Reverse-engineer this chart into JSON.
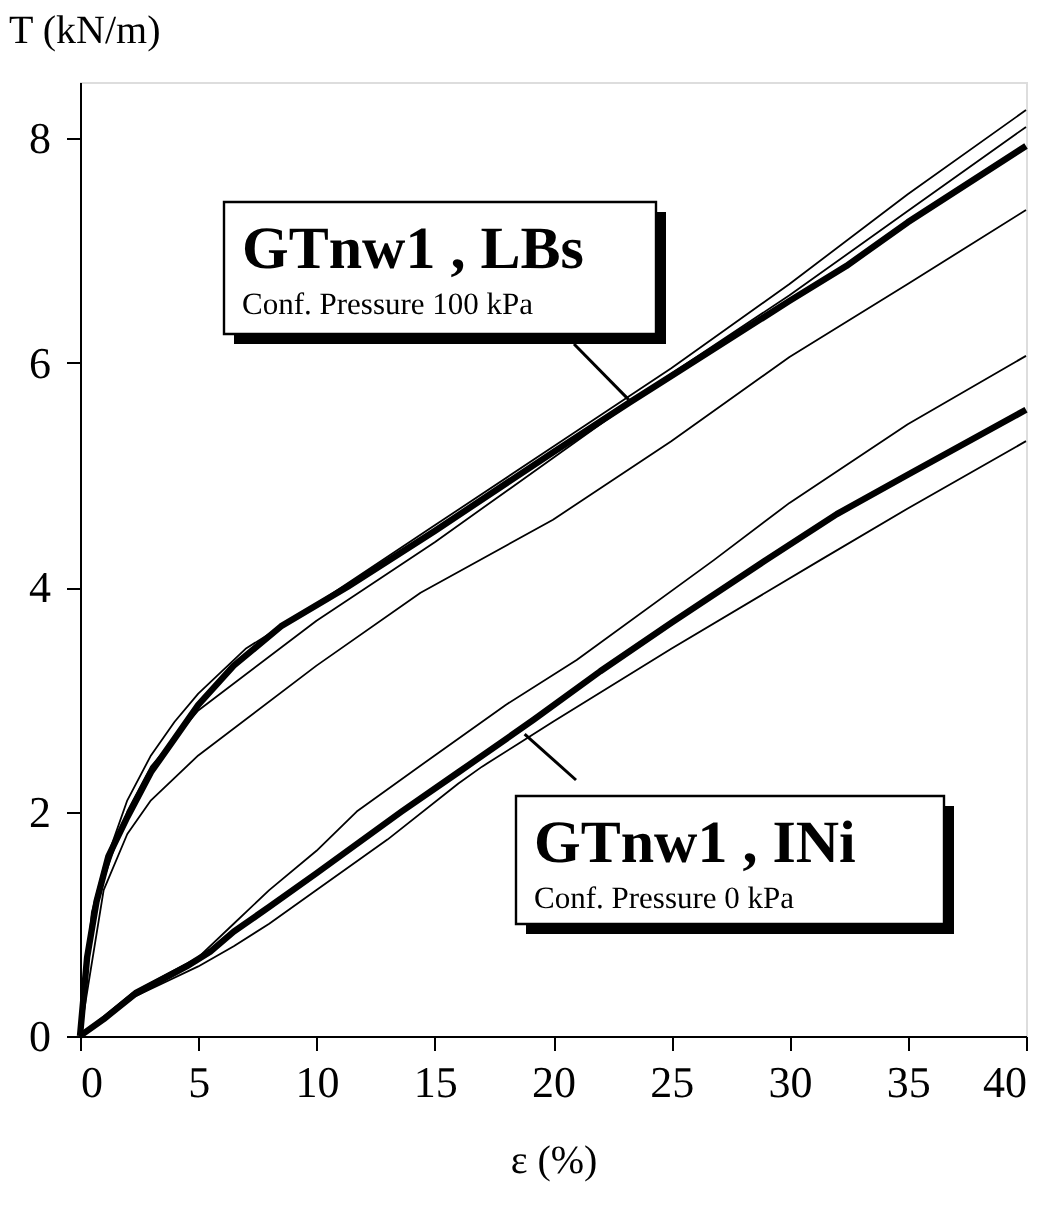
{
  "chart_data": {
    "type": "line",
    "xlabel": "ε (%)",
    "ylabel": "T (kN/m)",
    "xlim": [
      0,
      40
    ],
    "ylim": [
      0,
      8.5
    ],
    "xticks": [
      0,
      5,
      10,
      15,
      20,
      25,
      30,
      35,
      40
    ],
    "yticks": [
      0,
      2,
      4,
      6,
      8
    ],
    "grid": false,
    "marker": "none",
    "line_style": "solid",
    "series": [
      {
        "color": "#000000",
        "x": [
          0,
          0.3,
          0.7,
          1.2,
          2,
          3,
          4,
          5,
          6.5,
          8.5,
          11.3,
          15,
          20,
          23.2,
          25,
          30,
          32.4,
          35,
          40
        ],
        "values": [
          0,
          0.7,
          1.2,
          1.6,
          1.95,
          2.35,
          2.65,
          2.95,
          3.3,
          3.65,
          4.0,
          4.5,
          5.2,
          5.64,
          5.88,
          6.55,
          6.86,
          7.25,
          7.93
        ]
      },
      {
        "color": "#000000",
        "x": [
          0,
          1,
          2.3,
          4.5,
          5.5,
          6.5,
          8,
          10,
          13.6,
          16,
          19.2,
          22,
          25,
          29,
          32,
          35,
          40
        ],
        "values": [
          0,
          0.15,
          0.37,
          0.62,
          0.75,
          0.93,
          1.15,
          1.45,
          2.0,
          2.35,
          2.82,
          3.25,
          3.68,
          4.24,
          4.65,
          5.0,
          5.58
        ]
      },
      {
        "color": "#000000",
        "x": [
          0,
          0.5,
          1,
          2,
          3,
          4,
          5,
          7,
          10,
          15,
          20,
          25,
          30,
          35,
          40
        ],
        "values": [
          0,
          1.1,
          1.5,
          2.1,
          2.5,
          2.8,
          3.05,
          3.45,
          3.85,
          4.55,
          5.25,
          5.95,
          6.7,
          7.5,
          8.25
        ]
      },
      {
        "color": "#000000",
        "x": [
          0,
          0.5,
          1,
          2,
          3,
          5,
          10,
          15,
          20,
          25,
          30,
          35,
          40
        ],
        "values": [
          0,
          1.0,
          1.4,
          2.0,
          2.4,
          2.9,
          3.7,
          4.4,
          5.15,
          5.9,
          6.6,
          7.35,
          8.1
        ]
      },
      {
        "color": "#000000",
        "x": [
          0,
          1,
          2,
          3,
          5,
          10,
          14.4,
          20,
          25,
          30,
          35,
          40
        ],
        "values": [
          0,
          1.3,
          1.8,
          2.1,
          2.5,
          3.3,
          3.95,
          4.6,
          5.3,
          6.05,
          6.7,
          7.36
        ]
      },
      {
        "color": "#000000",
        "x": [
          0,
          2.3,
          5,
          6.5,
          8,
          10,
          11.7,
          15,
          18,
          21,
          26.8,
          30,
          35,
          40
        ],
        "values": [
          0,
          0.4,
          0.7,
          1.0,
          1.3,
          1.65,
          2.0,
          2.5,
          2.95,
          3.35,
          4.24,
          4.75,
          5.45,
          6.06
        ]
      },
      {
        "color": "#000000",
        "x": [
          0,
          2.3,
          5,
          6.5,
          8,
          10,
          13,
          16,
          17,
          18.5,
          20,
          25,
          31.3,
          35,
          40
        ],
        "values": [
          0,
          0.35,
          0.62,
          0.8,
          1.0,
          1.3,
          1.75,
          2.25,
          2.4,
          2.6,
          2.8,
          3.45,
          4.24,
          4.7,
          5.3
        ]
      }
    ],
    "annotations": [
      {
        "text": "GTnw1 , LBs\nConf. Pressure 100 kPa",
        "x": 23.2,
        "y": 5.67
      },
      {
        "text": "GTnw1 , INi\nConf. Pressure 0 kPa",
        "x": 18.8,
        "y": 2.69
      }
    ]
  }
}
